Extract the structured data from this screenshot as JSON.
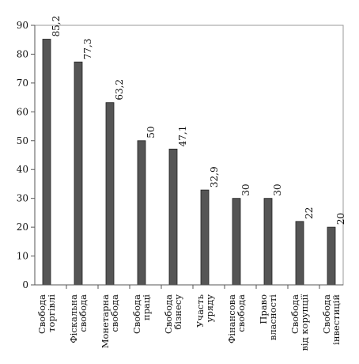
{
  "chart_data": {
    "type": "bar",
    "categories": [
      [
        "Свобода",
        "торгівлі"
      ],
      [
        "Фіскальна",
        "свобода"
      ],
      [
        "Монетарна",
        "свобода"
      ],
      [
        "Свобода",
        "праці"
      ],
      [
        "Свобода",
        "бізнесу"
      ],
      [
        "Участь",
        "уряду"
      ],
      [
        "Фінансова",
        "свобода"
      ],
      [
        "Право",
        "власності"
      ],
      [
        "Свобода",
        "від корупції"
      ],
      [
        "Свобода",
        "інвестицій"
      ]
    ],
    "values": [
      85.2,
      77.3,
      63.2,
      50,
      47.1,
      32.9,
      30,
      30,
      22,
      20
    ],
    "value_labels": [
      "85,2",
      "77,3",
      "63,2",
      "50",
      "47,1",
      "32,9",
      "30",
      "30",
      "22",
      "20"
    ],
    "ylim": [
      0,
      90
    ],
    "yticks": [
      0,
      10,
      20,
      30,
      40,
      50,
      60,
      70,
      80,
      90
    ],
    "title": "",
    "xlabel": "",
    "ylabel": "",
    "grid": false,
    "legend": "none",
    "colors": {
      "bar": "#555555",
      "bar_stroke": "#222222",
      "axis": "#555555",
      "frame": "#999999"
    }
  }
}
